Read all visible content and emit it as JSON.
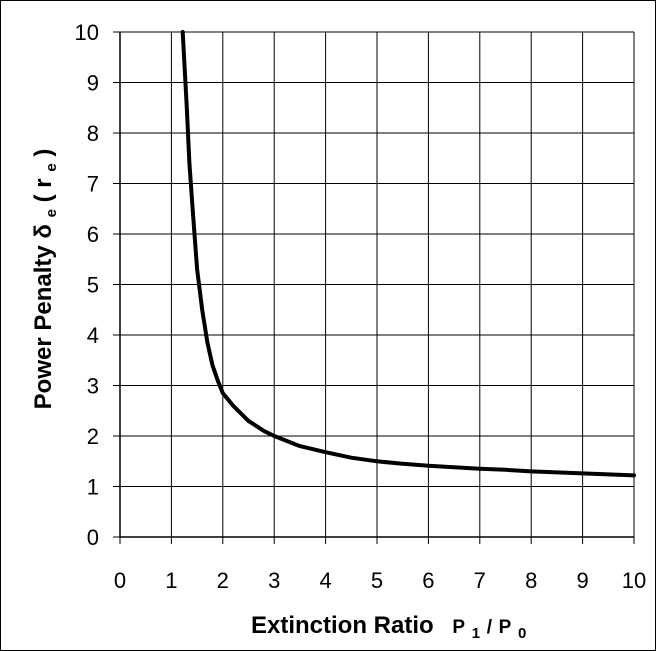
{
  "chart_data": {
    "type": "line",
    "title": "",
    "xlabel": {
      "main": "Extinction Ratio",
      "p1_base": "P",
      "p1_sub": "1",
      "slash": "/",
      "p0_base": "P",
      "p0_sub": "0"
    },
    "ylabel": {
      "main": "Power Penalty ",
      "delta": "δ",
      "delta_sub": "e",
      "open": "(",
      "r": "r",
      "r_sub": "e",
      "close": ")"
    },
    "xlim": [
      0,
      10
    ],
    "ylim": [
      0,
      10
    ],
    "x_ticks": [
      "0",
      "1",
      "2",
      "3",
      "4",
      "5",
      "6",
      "7",
      "8",
      "9",
      "10"
    ],
    "y_ticks": [
      "0",
      "1",
      "2",
      "3",
      "4",
      "5",
      "6",
      "7",
      "8",
      "9",
      "10"
    ],
    "grid": true,
    "legend": "none",
    "line_color": "#000000",
    "series": [
      {
        "x": [
          1.22,
          1.3,
          1.35,
          1.42,
          1.5,
          1.6,
          1.7,
          1.8,
          1.9,
          2.0,
          2.2,
          2.5,
          2.8,
          3.0,
          3.5,
          4.0,
          4.5,
          5.0,
          5.5,
          6.0,
          6.5,
          7.0,
          7.5,
          8.0,
          8.5,
          9.0,
          9.5,
          10.0
        ],
        "y": [
          10.0,
          8.5,
          7.4,
          6.4,
          5.3,
          4.5,
          3.85,
          3.4,
          3.1,
          2.85,
          2.6,
          2.3,
          2.1,
          2.0,
          1.8,
          1.68,
          1.57,
          1.5,
          1.45,
          1.41,
          1.38,
          1.35,
          1.33,
          1.3,
          1.28,
          1.26,
          1.24,
          1.22
        ]
      }
    ]
  }
}
